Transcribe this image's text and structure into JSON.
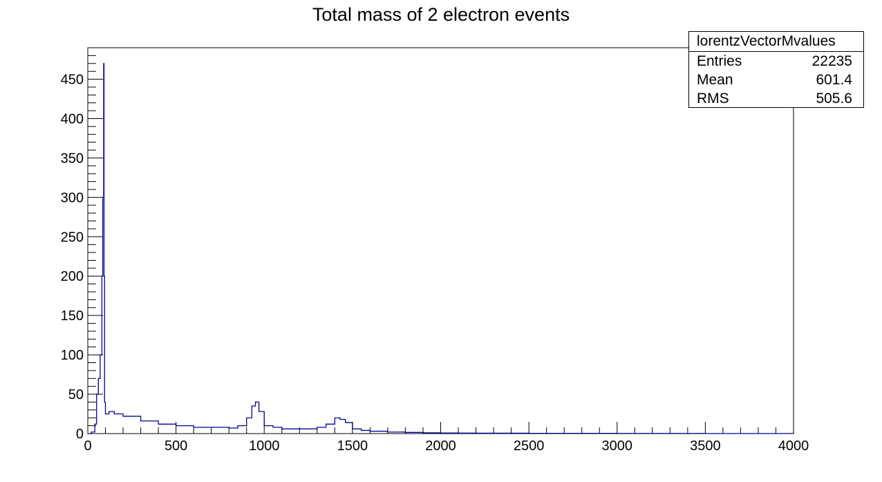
{
  "chart_data": {
    "type": "bar",
    "title": "Total mass of 2 electron events",
    "xlabel": "",
    "ylabel": "",
    "xlim": [
      0,
      4000
    ],
    "ylim": [
      0,
      490
    ],
    "x_ticks": [
      "0",
      "500",
      "1000",
      "1500",
      "2000",
      "2500",
      "3000",
      "3500",
      "4000"
    ],
    "y_ticks": [
      "0",
      "50",
      "100",
      "150",
      "200",
      "250",
      "300",
      "350",
      "400",
      "450"
    ],
    "series_color": "#000099",
    "stats": {
      "name": "lorentzVectorMvalues",
      "entries_label": "Entries",
      "entries": "22235",
      "mean_label": "Mean",
      "mean": "601.4",
      "rms_label": "RMS",
      "rms": "505.6"
    },
    "series": [
      {
        "x": [
          0,
          20,
          40,
          50,
          60,
          70,
          80,
          85,
          90,
          92,
          95,
          100,
          120,
          150,
          200,
          300,
          400,
          500,
          600,
          700,
          800,
          850,
          900,
          930,
          950,
          970,
          1000,
          1050,
          1100,
          1200,
          1300,
          1350,
          1400,
          1430,
          1460,
          1500,
          1550,
          1600,
          1700,
          1800,
          1900,
          2000,
          2100,
          2200,
          2500,
          3000,
          3500,
          4000
        ],
        "values": [
          0,
          2,
          12,
          50,
          70,
          100,
          200,
          300,
          470,
          200,
          40,
          25,
          28,
          25,
          22,
          16,
          12,
          10,
          8,
          8,
          7,
          10,
          20,
          35,
          40,
          28,
          10,
          8,
          6,
          6,
          8,
          12,
          20,
          18,
          14,
          6,
          4,
          3,
          2,
          1.5,
          1,
          0.8,
          0.6,
          0.5,
          0.3,
          0.2,
          0.1,
          0
        ]
      }
    ]
  }
}
